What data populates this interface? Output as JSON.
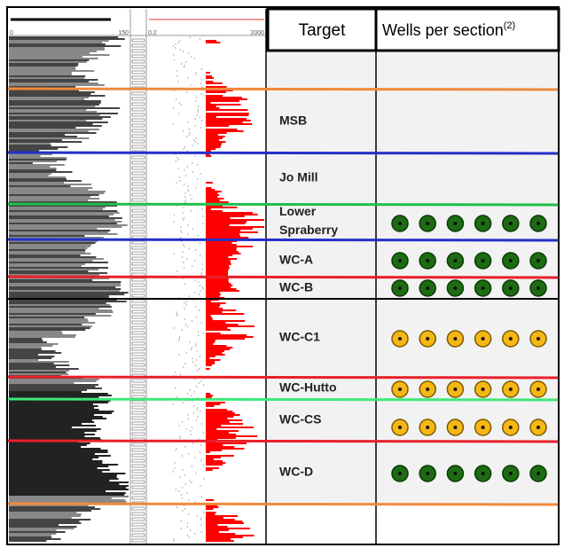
{
  "header": {
    "target": "Target",
    "wells": "Wells per section",
    "wells_note": "(2)"
  },
  "log_scale": {
    "track1": [
      "0",
      "150"
    ],
    "track2": [
      "0.2",
      "2000"
    ]
  },
  "rows": [
    {
      "target": [
        "MSB"
      ]
    },
    {
      "target": [
        "Jo Mill"
      ]
    },
    {
      "target": [
        "Lower",
        "Spraberry"
      ],
      "wells": 6,
      "well_color": "green"
    },
    {
      "target": [
        "WC-A"
      ],
      "wells": 6,
      "well_color": "green"
    },
    {
      "target": [
        "WC-B"
      ],
      "wells": 6,
      "well_color": "green"
    },
    {
      "target": [
        "WC-C1"
      ],
      "wells": 6,
      "well_color": "yellow"
    },
    {
      "target": [
        "WC-Hutto"
      ],
      "wells": 6,
      "well_color": "yellow"
    },
    {
      "target": [
        "WC-CS"
      ],
      "wells": 6,
      "well_color": "yellow"
    },
    {
      "target": [
        "WC-D"
      ],
      "wells": 6,
      "well_color": "green"
    }
  ]
}
